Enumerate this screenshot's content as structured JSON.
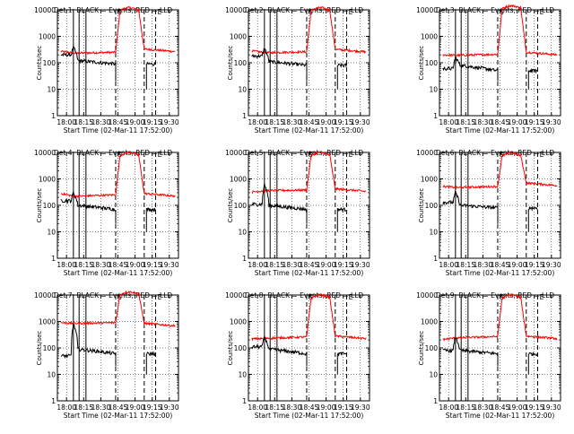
{
  "panel_titles": [
    "Det 1: BLACK = Events, RED = LLD",
    "Det 2: BLACK = Events, RED = LLD",
    "Det 3: BLACK = Events, RED = LLD",
    "Det 4: BLACK = Events, RED = LLD",
    "Det 5: BLACK = Events, RED = LLD",
    "Det 6: BLACK = Events, RED = LLD",
    "Det 7: BLACK = Events, RED = LLD",
    "Det 8: BLACK = Events, RED = LLD",
    "Det 9: BLACK = Events, RED = LLD"
  ],
  "colors": {
    "events": "#000000",
    "lld": "#ff0000",
    "axes": "#000000"
  },
  "chart_data": {
    "type": "line",
    "xlabel": "Start Time (02-Mar-11 17:52:00)",
    "ylabel": "Counts/sec",
    "x_ticks": [
      "18:00",
      "18:15",
      "18:30",
      "18:45",
      "19:00",
      "19:15",
      "19:30"
    ],
    "y_ticks": [
      "1",
      "10",
      "100",
      "1000",
      "10000"
    ],
    "y_scale": "log",
    "ylim": [
      1,
      10000
    ],
    "xlim_minutes": [
      -8,
      98
    ],
    "x_units": "minutes after 18:00",
    "grid": true,
    "panel_markers": [
      "S",
      "E"
    ],
    "solid_vlines_minutes": [
      6,
      11,
      17
    ],
    "dashed_vlines_minutes": [
      43,
      68,
      78
    ],
    "detectors": [
      {
        "events": {
          "start": 200,
          "spike": 380,
          "mid": 120,
          "end": 90
        },
        "lld": {
          "start": 270,
          "mid": 230,
          "end": 250,
          "plateau": 11000,
          "tail": 330
        }
      },
      {
        "events": {
          "start": 180,
          "spike": 340,
          "mid": 110,
          "end": 80
        },
        "lld": {
          "start": 280,
          "mid": 240,
          "end": 260,
          "plateau": 11000,
          "tail": 320
        }
      },
      {
        "events": {
          "start": 60,
          "spike": 160,
          "mid": 80,
          "end": 50
        },
        "lld": {
          "start": 200,
          "mid": 190,
          "end": 210,
          "plateau": 13000,
          "tail": 250
        }
      },
      {
        "events": {
          "start": 150,
          "spike": 300,
          "mid": 100,
          "end": 70
        },
        "lld": {
          "start": 280,
          "mid": 220,
          "end": 250,
          "plateau": 9000,
          "tail": 280
        }
      },
      {
        "events": {
          "start": 110,
          "spike": 600,
          "mid": 100,
          "end": 70
        },
        "lld": {
          "start": 320,
          "mid": 360,
          "end": 380,
          "plateau": 9000,
          "tail": 420
        }
      },
      {
        "events": {
          "start": 130,
          "spike": 300,
          "mid": 100,
          "end": 80
        },
        "lld": {
          "start": 520,
          "mid": 470,
          "end": 520,
          "plateau": 8500,
          "tail": 700
        }
      },
      {
        "events": {
          "start": 50,
          "spike": 800,
          "mid": 90,
          "end": 60
        },
        "lld": {
          "start": 900,
          "mid": 850,
          "end": 900,
          "plateau": 12000,
          "tail": 850
        }
      },
      {
        "events": {
          "start": 110,
          "spike": 250,
          "mid": 90,
          "end": 60
        },
        "lld": {
          "start": 220,
          "mid": 230,
          "end": 260,
          "plateau": 9000,
          "tail": 280
        }
      },
      {
        "events": {
          "start": 80,
          "spike": 250,
          "mid": 80,
          "end": 60
        },
        "lld": {
          "start": 210,
          "mid": 240,
          "end": 270,
          "plateau": 9000,
          "tail": 280
        }
      }
    ]
  }
}
